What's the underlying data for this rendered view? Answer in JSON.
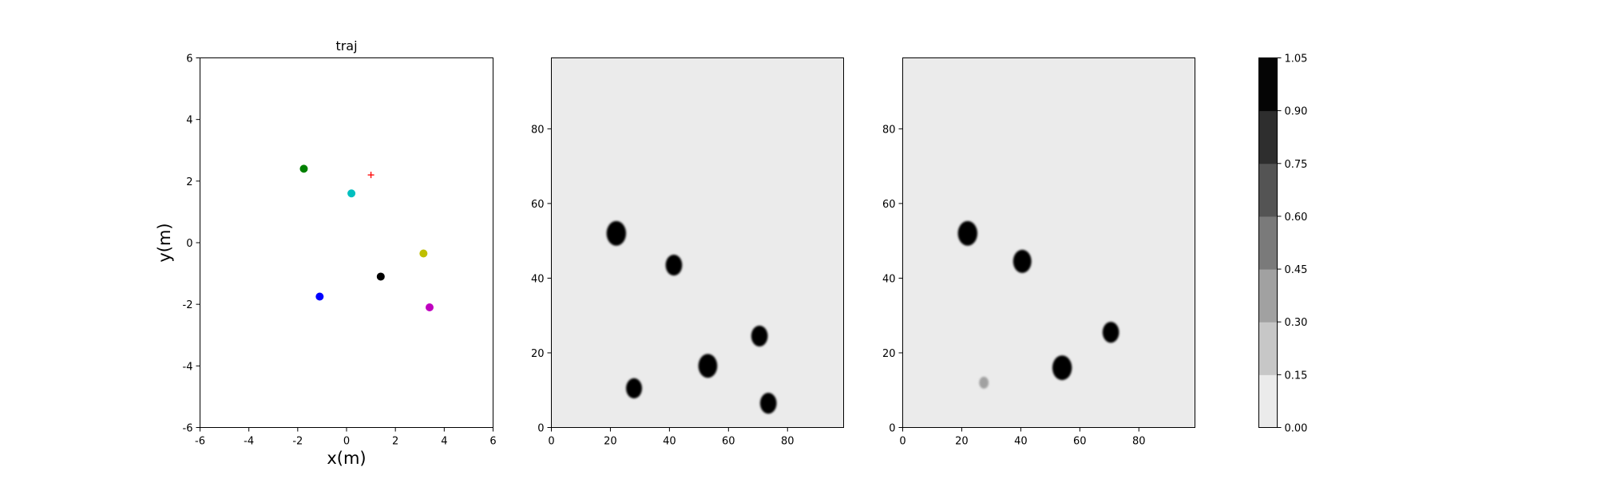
{
  "chart_data": [
    {
      "type": "scatter",
      "title": "traj",
      "xlabel": "x(m)",
      "ylabel": "y(m)",
      "xlim": [
        -6,
        6
      ],
      "ylim": [
        -6,
        6
      ],
      "xticks": [
        -6,
        -4,
        -2,
        0,
        2,
        4,
        6
      ],
      "yticks": [
        -6,
        -4,
        -2,
        0,
        2,
        4,
        6
      ],
      "grid": false,
      "points": [
        {
          "x": -1.75,
          "y": 2.4,
          "color": "#008000",
          "marker": "circle"
        },
        {
          "x": 0.2,
          "y": 1.6,
          "color": "#00bfbf",
          "marker": "circle"
        },
        {
          "x": 3.15,
          "y": -0.35,
          "color": "#bfbf00",
          "marker": "circle"
        },
        {
          "x": 1.4,
          "y": -1.1,
          "color": "#000000",
          "marker": "circle"
        },
        {
          "x": -1.1,
          "y": -1.75,
          "color": "#0000ff",
          "marker": "circle"
        },
        {
          "x": 3.4,
          "y": -2.1,
          "color": "#bf00bf",
          "marker": "circle"
        },
        {
          "x": 1.0,
          "y": 2.2,
          "color": "#ff0000",
          "marker": "plus"
        }
      ]
    },
    {
      "type": "heatmap",
      "xlim": [
        0,
        99
      ],
      "ylim": [
        0,
        99
      ],
      "xticks": [
        0,
        20,
        40,
        60,
        80
      ],
      "yticks": [
        0,
        20,
        40,
        60,
        80
      ],
      "background_value": 0.0,
      "blobs": [
        {
          "x": 22,
          "y": 52,
          "r": 3.3,
          "value": 1.0
        },
        {
          "x": 41.5,
          "y": 43.5,
          "r": 2.8,
          "value": 1.0
        },
        {
          "x": 53,
          "y": 16.5,
          "r": 3.2,
          "value": 1.0
        },
        {
          "x": 70.5,
          "y": 24.5,
          "r": 2.8,
          "value": 1.0
        },
        {
          "x": 28,
          "y": 10.5,
          "r": 2.7,
          "value": 1.0
        },
        {
          "x": 73.5,
          "y": 6.5,
          "r": 2.8,
          "value": 1.0
        }
      ]
    },
    {
      "type": "heatmap",
      "xlim": [
        0,
        99
      ],
      "ylim": [
        0,
        99
      ],
      "xticks": [
        0,
        20,
        40,
        60,
        80
      ],
      "yticks": [
        0,
        20,
        40,
        60,
        80
      ],
      "background_value": 0.0,
      "blobs": [
        {
          "x": 22,
          "y": 52,
          "r": 3.3,
          "value": 1.0
        },
        {
          "x": 40.5,
          "y": 44.5,
          "r": 3.1,
          "value": 1.0
        },
        {
          "x": 54,
          "y": 16,
          "r": 3.3,
          "value": 1.0
        },
        {
          "x": 70.5,
          "y": 25.5,
          "r": 2.8,
          "value": 1.0
        },
        {
          "x": 27.5,
          "y": 12,
          "r": 1.6,
          "value": 0.4
        }
      ]
    }
  ],
  "colorbar": {
    "levels": [
      "0.00",
      "0.15",
      "0.30",
      "0.45",
      "0.60",
      "0.75",
      "0.90",
      "1.05"
    ],
    "colors": [
      "#ebebeb",
      "#c7c7c7",
      "#a1a1a1",
      "#7a7a7a",
      "#545454",
      "#2e2e2e",
      "#050505"
    ]
  }
}
